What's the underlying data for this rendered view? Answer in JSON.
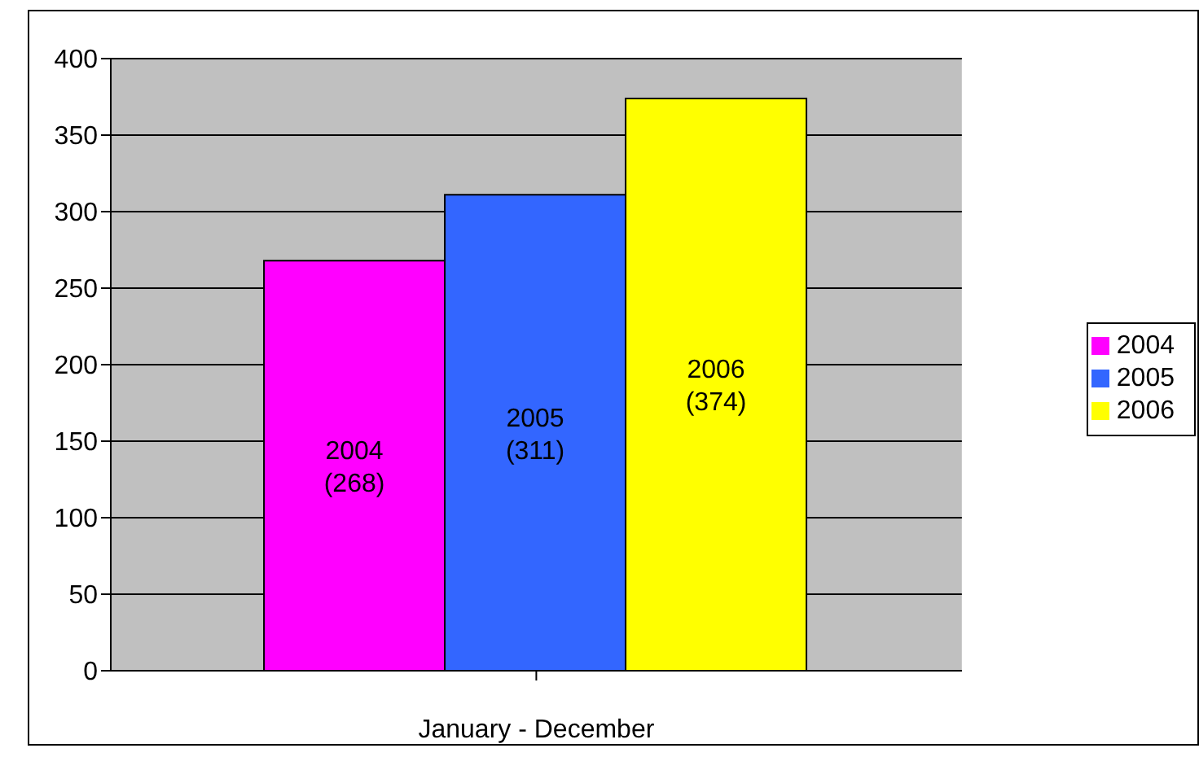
{
  "chart_data": {
    "type": "bar",
    "xlabel": "January - December",
    "categories": [
      null
    ],
    "series": [
      {
        "name": "2004",
        "color": "#ff00ff",
        "values": [
          268
        ],
        "value_labels": [
          "(268)"
        ]
      },
      {
        "name": "2005",
        "color": "#3366ff",
        "values": [
          311
        ],
        "value_labels": [
          "(311)"
        ]
      },
      {
        "name": "2006",
        "color": "#ffff00",
        "values": [
          374
        ],
        "value_labels": [
          "(374)"
        ]
      }
    ],
    "ylim": [
      0,
      400
    ],
    "yticks": [
      0,
      50,
      100,
      150,
      200,
      250,
      300,
      350,
      400
    ],
    "grid": "y",
    "legend": "right"
  }
}
